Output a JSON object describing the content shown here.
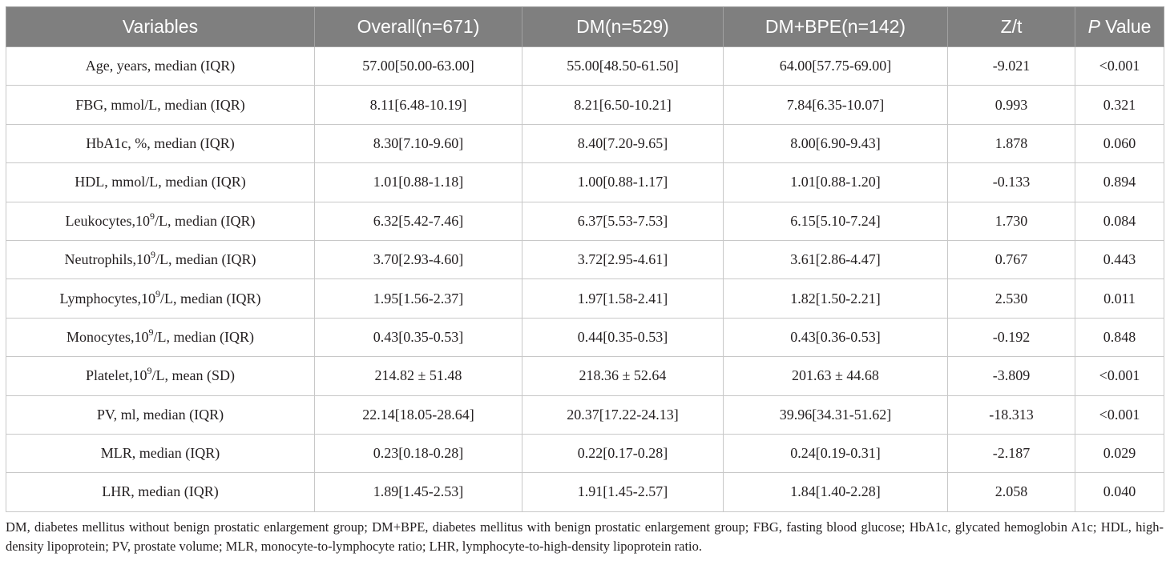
{
  "table": {
    "headers": {
      "variables": "Variables",
      "overall": "Overall(n=671)",
      "dm": "DM(n=529)",
      "dm_bpe": "DM+BPE(n=142)",
      "zt": "Z/t",
      "p_italic": "P",
      "p_rest": " Value"
    },
    "rows": [
      {
        "label_pre": "Age, years, median (IQR)",
        "sup": "",
        "label_post": "",
        "overall": "57.00[50.00-63.00]",
        "dm": "55.00[48.50-61.50]",
        "dm_bpe": "64.00[57.75-69.00]",
        "zt": "-9.021",
        "p": "<0.001"
      },
      {
        "label_pre": "FBG, mmol/L, median (IQR)",
        "sup": "",
        "label_post": "",
        "overall": "8.11[6.48-10.19]",
        "dm": "8.21[6.50-10.21]",
        "dm_bpe": "7.84[6.35-10.07]",
        "zt": "0.993",
        "p": "0.321"
      },
      {
        "label_pre": "HbA1c, %, median (IQR)",
        "sup": "",
        "label_post": "",
        "overall": "8.30[7.10-9.60]",
        "dm": "8.40[7.20-9.65]",
        "dm_bpe": "8.00[6.90-9.43]",
        "zt": "1.878",
        "p": "0.060"
      },
      {
        "label_pre": "HDL, mmol/L, median (IQR)",
        "sup": "",
        "label_post": "",
        "overall": "1.01[0.88-1.18]",
        "dm": "1.00[0.88-1.17]",
        "dm_bpe": "1.01[0.88-1.20]",
        "zt": "-0.133",
        "p": "0.894"
      },
      {
        "label_pre": "Leukocytes,10",
        "sup": "9",
        "label_post": "/L, median (IQR)",
        "overall": "6.32[5.42-7.46]",
        "dm": "6.37[5.53-7.53]",
        "dm_bpe": "6.15[5.10-7.24]",
        "zt": "1.730",
        "p": "0.084"
      },
      {
        "label_pre": "Neutrophils,10",
        "sup": "9",
        "label_post": "/L, median (IQR)",
        "overall": "3.70[2.93-4.60]",
        "dm": "3.72[2.95-4.61]",
        "dm_bpe": "3.61[2.86-4.47]",
        "zt": "0.767",
        "p": "0.443"
      },
      {
        "label_pre": "Lymphocytes,10",
        "sup": "9",
        "label_post": "/L, median (IQR)",
        "overall": "1.95[1.56-2.37]",
        "dm": "1.97[1.58-2.41]",
        "dm_bpe": "1.82[1.50-2.21]",
        "zt": "2.530",
        "p": "0.011"
      },
      {
        "label_pre": "Monocytes,10",
        "sup": "9",
        "label_post": "/L, median (IQR)",
        "overall": "0.43[0.35-0.53]",
        "dm": "0.44[0.35-0.53]",
        "dm_bpe": "0.43[0.36-0.53]",
        "zt": "-0.192",
        "p": "0.848"
      },
      {
        "label_pre": "Platelet,10",
        "sup": "9",
        "label_post": "/L, mean (SD)",
        "overall": "214.82 ± 51.48",
        "dm": "218.36 ± 52.64",
        "dm_bpe": "201.63 ± 44.68",
        "zt": "-3.809",
        "p": "<0.001"
      },
      {
        "label_pre": "PV, ml, median (IQR)",
        "sup": "",
        "label_post": "",
        "overall": "22.14[18.05-28.64]",
        "dm": "20.37[17.22-24.13]",
        "dm_bpe": "39.96[34.31-51.62]",
        "zt": "-18.313",
        "p": "<0.001"
      },
      {
        "label_pre": "MLR, median (IQR)",
        "sup": "",
        "label_post": "",
        "overall": "0.23[0.18-0.28]",
        "dm": "0.22[0.17-0.28]",
        "dm_bpe": "0.24[0.19-0.31]",
        "zt": "-2.187",
        "p": "0.029"
      },
      {
        "label_pre": "LHR, median (IQR)",
        "sup": "",
        "label_post": "",
        "overall": "1.89[1.45-2.53]",
        "dm": "1.91[1.45-2.57]",
        "dm_bpe": "1.84[1.40-2.28]",
        "zt": "2.058",
        "p": "0.040"
      }
    ]
  },
  "footnote": "DM, diabetes mellitus without benign prostatic enlargement group; DM+BPE, diabetes mellitus with benign prostatic enlargement group; FBG, fasting blood glucose; HbA1c, glycated hemoglobin A1c; HDL, high-density lipoprotein; PV, prostate volume; MLR, monocyte-to-lymphocyte ratio; LHR, lymphocyte-to-high-density lipoprotein ratio.",
  "colors": {
    "header_bg": "#7f7f7f",
    "header_text": "#ffffff",
    "border": "#c8c8c8"
  }
}
